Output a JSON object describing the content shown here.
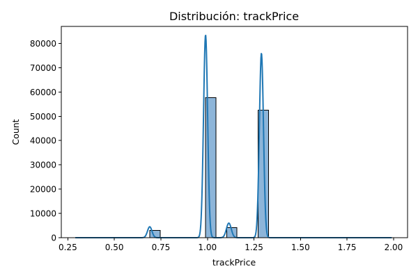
{
  "chart_data": {
    "type": "bar",
    "title": "Distribución: trackPrice",
    "xlabel": "trackPrice",
    "ylabel": "Count",
    "xlim": [
      0.215,
      2.075
    ],
    "ylim": [
      0,
      87000
    ],
    "xticks": [
      0.25,
      0.5,
      0.75,
      1.0,
      1.25,
      1.5,
      1.75,
      2.0
    ],
    "xtick_labels": [
      "0.25",
      "0.50",
      "0.75",
      "1.00",
      "1.25",
      "1.50",
      "1.75",
      "2.00"
    ],
    "yticks": [
      0,
      10000,
      20000,
      30000,
      40000,
      50000,
      60000,
      70000,
      80000
    ],
    "ytick_labels": [
      "0",
      "10000",
      "20000",
      "30000",
      "40000",
      "50000",
      "60000",
      "70000",
      "80000"
    ],
    "bars": [
      {
        "x0": 0.69,
        "x1": 0.746,
        "count": 3000
      },
      {
        "x0": 0.99,
        "x1": 1.046,
        "count": 57700
      },
      {
        "x0": 1.103,
        "x1": 1.159,
        "count": 4100
      },
      {
        "x0": 1.273,
        "x1": 1.329,
        "count": 52500
      }
    ],
    "kde": {
      "x_range": [
        0.29,
        1.99
      ],
      "peaks": [
        {
          "center": 0.69,
          "height": 4500,
          "width": 0.012
        },
        {
          "center": 0.99,
          "height": 83500,
          "width": 0.011
        },
        {
          "center": 1.115,
          "height": 6000,
          "width": 0.013
        },
        {
          "center": 1.29,
          "height": 76000,
          "width": 0.011
        }
      ]
    },
    "colors": {
      "bar_fill": "#8db5d9",
      "bar_edge": "#000000",
      "line": "#1f77b4"
    }
  }
}
